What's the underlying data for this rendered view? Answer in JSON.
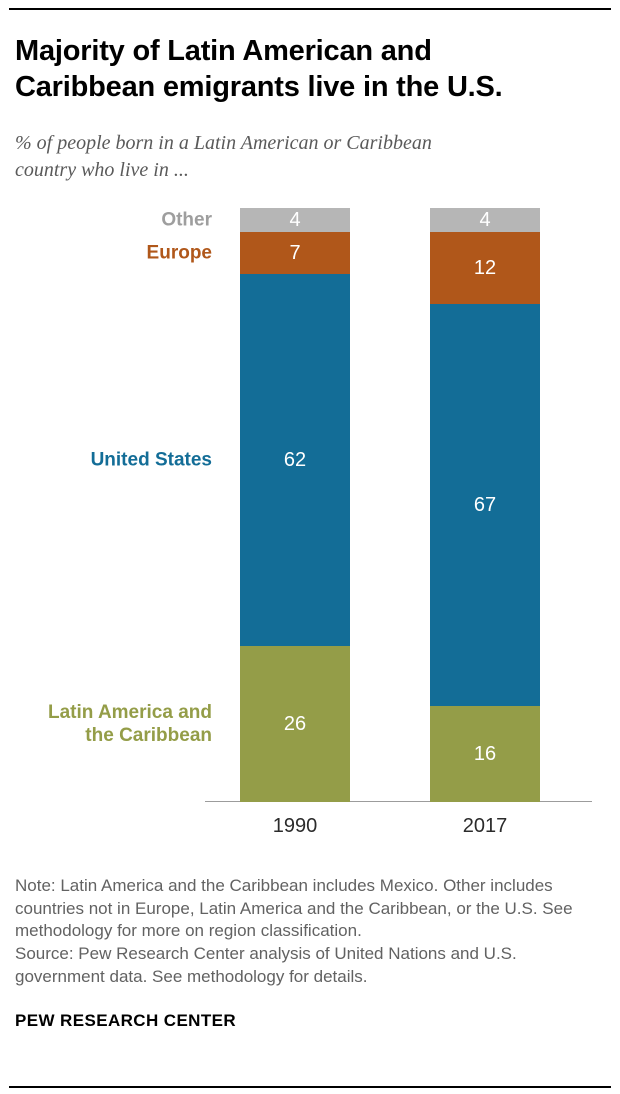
{
  "header": {
    "title": "Majority of Latin American and Caribbean emigrants live in the U.S.",
    "subtitle": "% of people born in a Latin American or Caribbean country who live in ..."
  },
  "chart_data": {
    "type": "bar",
    "stacked": true,
    "unit": "%",
    "grid": false,
    "legend_position": "left",
    "categories": [
      "1990",
      "2017"
    ],
    "series": [
      {
        "key": "latin-america-caribbean",
        "name": "Latin America and the Caribbean",
        "label_lines": [
          "Latin America and",
          "the Caribbean"
        ],
        "color": "#949d48",
        "values": [
          26,
          16
        ]
      },
      {
        "key": "united-states",
        "name": "United States",
        "label_lines": [
          "United States"
        ],
        "color": "#136d97",
        "values": [
          62,
          67
        ]
      },
      {
        "key": "europe",
        "name": "Europe",
        "label_lines": [
          "Europe"
        ],
        "color": "#b0571a",
        "values": [
          7,
          12
        ]
      },
      {
        "key": "other",
        "name": "Other",
        "label_lines": [
          "Other"
        ],
        "color": "#b6b6b6",
        "label_color": "#9e9e9e",
        "values": [
          4,
          4
        ]
      }
    ],
    "value_label_color": "#ffffff"
  },
  "notes": {
    "note": "Note: Latin America and the Caribbean includes Mexico. Other includes countries not in Europe, Latin America and the Caribbean, or the U.S. See methodology for more on region classification.",
    "source": "Source: Pew Research Center analysis of United Nations and U.S. government data. See methodology for details."
  },
  "footer": {
    "brand": "PEW RESEARCH CENTER"
  }
}
